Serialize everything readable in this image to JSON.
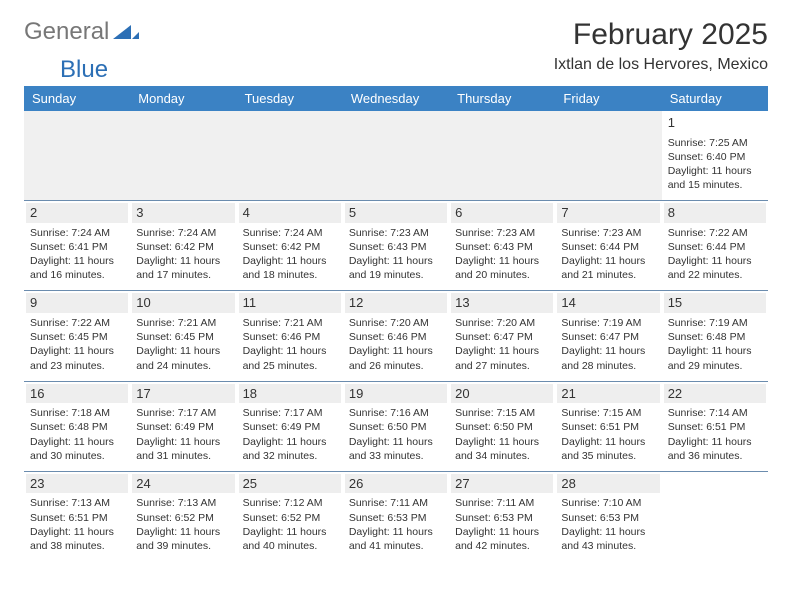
{
  "logo": {
    "text1": "General",
    "text2": "Blue"
  },
  "title": "February 2025",
  "location": "Ixtlan de los Hervores, Mexico",
  "colors": {
    "header_bg": "#3b82c4",
    "header_text": "#ffffff",
    "border": "#6b8cae",
    "daynum_bg": "#eeeeee",
    "logo_blue": "#2c6fb5"
  },
  "day_headers": [
    "Sunday",
    "Monday",
    "Tuesday",
    "Wednesday",
    "Thursday",
    "Friday",
    "Saturday"
  ],
  "weeks": [
    [
      null,
      null,
      null,
      null,
      null,
      null,
      {
        "n": "1",
        "sr": "7:25 AM",
        "ss": "6:40 PM",
        "dl": "11 hours and 15 minutes."
      }
    ],
    [
      {
        "n": "2",
        "sr": "7:24 AM",
        "ss": "6:41 PM",
        "dl": "11 hours and 16 minutes."
      },
      {
        "n": "3",
        "sr": "7:24 AM",
        "ss": "6:42 PM",
        "dl": "11 hours and 17 minutes."
      },
      {
        "n": "4",
        "sr": "7:24 AM",
        "ss": "6:42 PM",
        "dl": "11 hours and 18 minutes."
      },
      {
        "n": "5",
        "sr": "7:23 AM",
        "ss": "6:43 PM",
        "dl": "11 hours and 19 minutes."
      },
      {
        "n": "6",
        "sr": "7:23 AM",
        "ss": "6:43 PM",
        "dl": "11 hours and 20 minutes."
      },
      {
        "n": "7",
        "sr": "7:23 AM",
        "ss": "6:44 PM",
        "dl": "11 hours and 21 minutes."
      },
      {
        "n": "8",
        "sr": "7:22 AM",
        "ss": "6:44 PM",
        "dl": "11 hours and 22 minutes."
      }
    ],
    [
      {
        "n": "9",
        "sr": "7:22 AM",
        "ss": "6:45 PM",
        "dl": "11 hours and 23 minutes."
      },
      {
        "n": "10",
        "sr": "7:21 AM",
        "ss": "6:45 PM",
        "dl": "11 hours and 24 minutes."
      },
      {
        "n": "11",
        "sr": "7:21 AM",
        "ss": "6:46 PM",
        "dl": "11 hours and 25 minutes."
      },
      {
        "n": "12",
        "sr": "7:20 AM",
        "ss": "6:46 PM",
        "dl": "11 hours and 26 minutes."
      },
      {
        "n": "13",
        "sr": "7:20 AM",
        "ss": "6:47 PM",
        "dl": "11 hours and 27 minutes."
      },
      {
        "n": "14",
        "sr": "7:19 AM",
        "ss": "6:47 PM",
        "dl": "11 hours and 28 minutes."
      },
      {
        "n": "15",
        "sr": "7:19 AM",
        "ss": "6:48 PM",
        "dl": "11 hours and 29 minutes."
      }
    ],
    [
      {
        "n": "16",
        "sr": "7:18 AM",
        "ss": "6:48 PM",
        "dl": "11 hours and 30 minutes."
      },
      {
        "n": "17",
        "sr": "7:17 AM",
        "ss": "6:49 PM",
        "dl": "11 hours and 31 minutes."
      },
      {
        "n": "18",
        "sr": "7:17 AM",
        "ss": "6:49 PM",
        "dl": "11 hours and 32 minutes."
      },
      {
        "n": "19",
        "sr": "7:16 AM",
        "ss": "6:50 PM",
        "dl": "11 hours and 33 minutes."
      },
      {
        "n": "20",
        "sr": "7:15 AM",
        "ss": "6:50 PM",
        "dl": "11 hours and 34 minutes."
      },
      {
        "n": "21",
        "sr": "7:15 AM",
        "ss": "6:51 PM",
        "dl": "11 hours and 35 minutes."
      },
      {
        "n": "22",
        "sr": "7:14 AM",
        "ss": "6:51 PM",
        "dl": "11 hours and 36 minutes."
      }
    ],
    [
      {
        "n": "23",
        "sr": "7:13 AM",
        "ss": "6:51 PM",
        "dl": "11 hours and 38 minutes."
      },
      {
        "n": "24",
        "sr": "7:13 AM",
        "ss": "6:52 PM",
        "dl": "11 hours and 39 minutes."
      },
      {
        "n": "25",
        "sr": "7:12 AM",
        "ss": "6:52 PM",
        "dl": "11 hours and 40 minutes."
      },
      {
        "n": "26",
        "sr": "7:11 AM",
        "ss": "6:53 PM",
        "dl": "11 hours and 41 minutes."
      },
      {
        "n": "27",
        "sr": "7:11 AM",
        "ss": "6:53 PM",
        "dl": "11 hours and 42 minutes."
      },
      {
        "n": "28",
        "sr": "7:10 AM",
        "ss": "6:53 PM",
        "dl": "11 hours and 43 minutes."
      },
      null
    ]
  ],
  "labels": {
    "sunrise": "Sunrise: ",
    "sunset": "Sunset: ",
    "daylight": "Daylight: "
  }
}
